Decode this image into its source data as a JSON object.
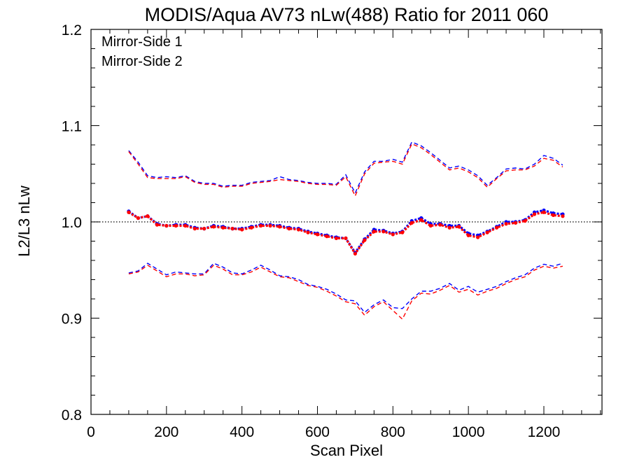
{
  "chart_data": {
    "type": "line",
    "title": "MODIS/Aqua AV73 nLw(488) Ratio for 2011 060",
    "xlabel": "Scan Pixel",
    "ylabel": "L2/L3 nLw",
    "xlim": [
      0,
      1354
    ],
    "ylim": [
      0.8,
      1.2
    ],
    "x_ticks": [
      0,
      200,
      400,
      600,
      800,
      1000,
      1200
    ],
    "y_ticks": [
      0.8,
      0.9,
      1.0,
      1.1,
      1.2
    ],
    "x_tick_labels": [
      "0",
      "200",
      "400",
      "600",
      "800",
      "1000",
      "1200"
    ],
    "y_tick_labels": [
      "0.8",
      "0.9",
      "1.0",
      "1.1",
      "1.2"
    ],
    "reference_line": {
      "y": 1.0,
      "style": "dotted",
      "color": "#000000"
    },
    "legend_position": "top-left",
    "grid": false,
    "x": [
      100,
      125,
      150,
      175,
      200,
      225,
      250,
      275,
      300,
      325,
      350,
      375,
      400,
      425,
      450,
      475,
      500,
      525,
      550,
      575,
      600,
      625,
      650,
      675,
      700,
      725,
      750,
      775,
      800,
      825,
      850,
      875,
      900,
      925,
      950,
      975,
      1000,
      1025,
      1050,
      1075,
      1100,
      1125,
      1150,
      1175,
      1200,
      1225,
      1250
    ],
    "series": [
      {
        "name": "Mirror-Side 1",
        "color": "#0000ff",
        "mean": [
          1.011,
          1.004,
          1.006,
          0.998,
          0.996,
          0.997,
          0.997,
          0.994,
          0.993,
          0.996,
          0.995,
          0.993,
          0.993,
          0.995,
          0.997,
          0.997,
          0.996,
          0.994,
          0.993,
          0.99,
          0.988,
          0.986,
          0.984,
          0.983,
          0.968,
          0.982,
          0.992,
          0.991,
          0.988,
          0.99,
          1.001,
          1.004,
          0.998,
          0.998,
          0.996,
          0.996,
          0.988,
          0.986,
          0.99,
          0.995,
          1.0,
          1.0,
          1.002,
          1.01,
          1.012,
          1.009,
          1.008
        ],
        "upper": [
          1.074,
          1.062,
          1.048,
          1.046,
          1.047,
          1.046,
          1.048,
          1.042,
          1.04,
          1.04,
          1.037,
          1.038,
          1.038,
          1.041,
          1.042,
          1.043,
          1.047,
          1.044,
          1.043,
          1.041,
          1.04,
          1.04,
          1.039,
          1.049,
          1.03,
          1.052,
          1.063,
          1.063,
          1.065,
          1.062,
          1.083,
          1.079,
          1.072,
          1.064,
          1.056,
          1.058,
          1.054,
          1.048,
          1.038,
          1.046,
          1.055,
          1.056,
          1.055,
          1.06,
          1.069,
          1.066,
          1.059
        ],
        "lower": [
          0.947,
          0.949,
          0.957,
          0.951,
          0.945,
          0.948,
          0.947,
          0.946,
          0.946,
          0.957,
          0.953,
          0.947,
          0.946,
          0.95,
          0.955,
          0.95,
          0.944,
          0.943,
          0.94,
          0.935,
          0.933,
          0.93,
          0.925,
          0.919,
          0.918,
          0.906,
          0.914,
          0.919,
          0.911,
          0.91,
          0.92,
          0.928,
          0.928,
          0.931,
          0.936,
          0.929,
          0.933,
          0.927,
          0.93,
          0.933,
          0.938,
          0.942,
          0.945,
          0.952,
          0.956,
          0.954,
          0.957
        ]
      },
      {
        "name": "Mirror-Side 2",
        "color": "#ff0000",
        "mean": [
          1.01,
          1.004,
          1.006,
          0.997,
          0.996,
          0.996,
          0.996,
          0.993,
          0.993,
          0.995,
          0.994,
          0.993,
          0.992,
          0.994,
          0.996,
          0.996,
          0.995,
          0.993,
          0.992,
          0.989,
          0.987,
          0.985,
          0.983,
          0.983,
          0.967,
          0.981,
          0.99,
          0.99,
          0.987,
          0.989,
          0.999,
          1.002,
          0.996,
          0.997,
          0.994,
          0.995,
          0.986,
          0.984,
          0.989,
          0.994,
          0.998,
          0.999,
          1.001,
          1.008,
          1.01,
          1.007,
          1.006
        ],
        "upper": [
          1.073,
          1.06,
          1.046,
          1.045,
          1.045,
          1.045,
          1.047,
          1.041,
          1.039,
          1.039,
          1.036,
          1.037,
          1.037,
          1.04,
          1.041,
          1.042,
          1.044,
          1.043,
          1.042,
          1.04,
          1.039,
          1.039,
          1.038,
          1.047,
          1.027,
          1.05,
          1.061,
          1.062,
          1.063,
          1.06,
          1.081,
          1.077,
          1.07,
          1.062,
          1.054,
          1.056,
          1.052,
          1.046,
          1.036,
          1.045,
          1.053,
          1.054,
          1.054,
          1.058,
          1.066,
          1.064,
          1.057
        ],
        "lower": [
          0.946,
          0.948,
          0.955,
          0.949,
          0.943,
          0.946,
          0.946,
          0.944,
          0.945,
          0.955,
          0.951,
          0.945,
          0.945,
          0.948,
          0.953,
          0.948,
          0.943,
          0.942,
          0.938,
          0.934,
          0.932,
          0.928,
          0.923,
          0.917,
          0.915,
          0.903,
          0.912,
          0.917,
          0.908,
          0.899,
          0.918,
          0.926,
          0.925,
          0.929,
          0.934,
          0.927,
          0.93,
          0.924,
          0.928,
          0.931,
          0.936,
          0.94,
          0.943,
          0.95,
          0.954,
          0.952,
          0.954
        ]
      }
    ]
  }
}
